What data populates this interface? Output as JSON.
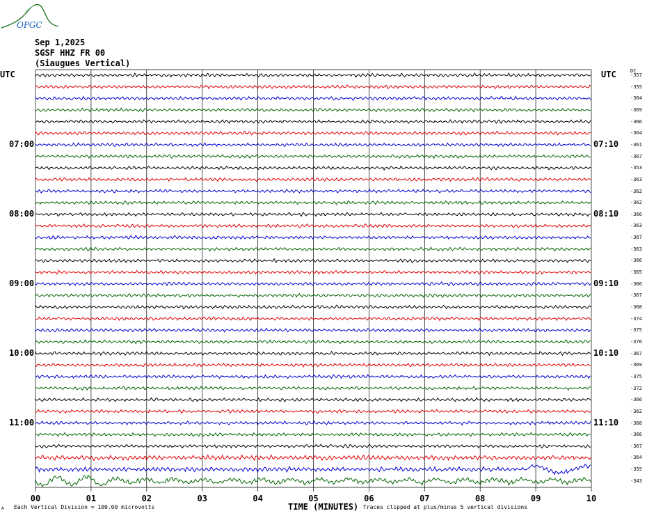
{
  "logo": {
    "text": "OPGC",
    "color": "#2e7d32",
    "text_color": "#1565c0"
  },
  "header": {
    "date": "Sep 1,2025",
    "station": "SGSF HHZ FR 00",
    "description": "(Siaugues Vertical)"
  },
  "utc_left": "UTC",
  "utc_right": "UTC",
  "dc_label": "DC",
  "footer": {
    "scale_prefix": "A",
    "scale": "Each Vertical Division =  100.00 microvolts",
    "xlabel": "TIME (MINUTES)",
    "clip_note": "Traces clipped at plus/minus 5 vertical divisions"
  },
  "chart_data": {
    "type": "line",
    "title": "SGSF HHZ FR 00 (Siaugues Vertical)",
    "xlabel": "TIME (MINUTES)",
    "ylabel": "UTC",
    "xlim": [
      0,
      10
    ],
    "x_ticks": [
      "00",
      "01",
      "02",
      "03",
      "04",
      "05",
      "06",
      "07",
      "08",
      "09",
      "10"
    ],
    "grid": true,
    "trace_colors": [
      "#000000",
      "#e00000",
      "#0000d0",
      "#006400"
    ],
    "hour_labels_left": [
      {
        "row": 6,
        "label": "07:00"
      },
      {
        "row": 12,
        "label": "08:00"
      },
      {
        "row": 18,
        "label": "09:00"
      },
      {
        "row": 24,
        "label": "10:00"
      },
      {
        "row": 30,
        "label": "11:00"
      }
    ],
    "hour_labels_right": [
      {
        "row": 6,
        "label": "07:10"
      },
      {
        "row": 12,
        "label": "08:10"
      },
      {
        "row": 18,
        "label": "09:10"
      },
      {
        "row": 24,
        "label": "10:10"
      },
      {
        "row": 30,
        "label": "11:10"
      }
    ],
    "dc_offsets": [
      "-357",
      "-355",
      "-364",
      "-369",
      "-366",
      "-364",
      "-361",
      "-367",
      "-353",
      "-363",
      "-362",
      "-362",
      "-366",
      "-363",
      "-367",
      "-363",
      "-366",
      "-365",
      "-366",
      "-367",
      "-368",
      "-374",
      "-375",
      "-376",
      "-367",
      "-369",
      "-375",
      "-372",
      "-366",
      "-362",
      "-368",
      "-366",
      "-367",
      "-364",
      "-355",
      "-343"
    ]
  }
}
